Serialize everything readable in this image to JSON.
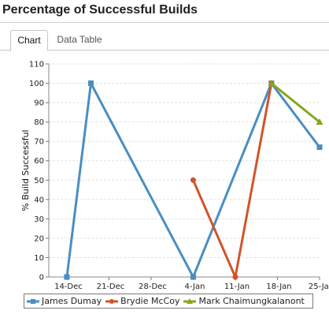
{
  "panel": {
    "title": "Percentage of Successful Builds"
  },
  "tabs": [
    {
      "label": "Chart",
      "active": true
    },
    {
      "label": "Data Table",
      "active": false
    }
  ],
  "chart_data": {
    "type": "line",
    "title": "",
    "xlabel": "",
    "ylabel": "% Build Successful",
    "ylim": [
      0,
      110
    ],
    "yticks": [
      0,
      10,
      20,
      30,
      40,
      50,
      60,
      70,
      80,
      90,
      100,
      110
    ],
    "xlim": [
      "2013-12-11",
      "2014-01-25"
    ],
    "xticks": [
      "14-Dec",
      "21-Dec",
      "28-Dec",
      "4-Jan",
      "11-Jan",
      "18-Jan",
      "25-Jan"
    ],
    "xtick_dates": [
      "2013-12-14",
      "2013-12-21",
      "2013-12-28",
      "2014-01-04",
      "2014-01-11",
      "2014-01-18",
      "2014-01-25"
    ],
    "grid": true,
    "legend_position": "bottom",
    "series": [
      {
        "name": "James Dumay",
        "color": "#4a8ec2",
        "marker": "square",
        "points": [
          {
            "x": "2013-12-14",
            "y": 0
          },
          {
            "x": "2013-12-18",
            "y": 100
          },
          {
            "x": "2014-01-04",
            "y": 0
          },
          {
            "x": "2014-01-17",
            "y": 100
          },
          {
            "x": "2014-01-25",
            "y": 67
          }
        ]
      },
      {
        "name": "Brydie McCoy",
        "color": "#d0552a",
        "marker": "circle",
        "points": [
          {
            "x": "2014-01-04",
            "y": 50
          },
          {
            "x": "2014-01-11",
            "y": 0
          },
          {
            "x": "2014-01-17",
            "y": 100
          }
        ]
      },
      {
        "name": "Mark Chaimungkalanont",
        "color": "#86a71b",
        "marker": "triangle",
        "points": [
          {
            "x": "2014-01-17",
            "y": 100
          },
          {
            "x": "2014-01-25",
            "y": 80
          }
        ]
      }
    ]
  }
}
